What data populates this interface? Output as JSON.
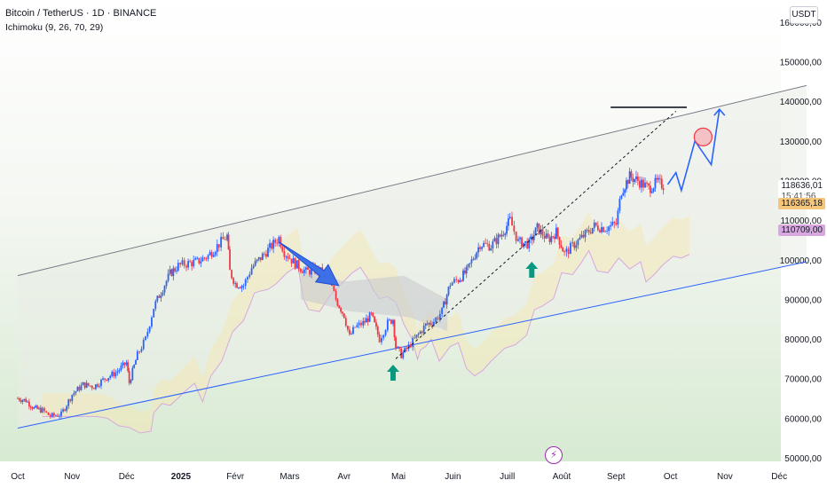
{
  "header": {
    "symbol": "Bitcoin / TetherUS · 1D · BINANCE",
    "indicator": "Ichimoku (9, 26, 70, 29)",
    "currency_button": "USDT"
  },
  "colors": {
    "up": "#2962ff",
    "down": "#f23645",
    "channel_upper": "#787b86",
    "channel_lower": "#2962ff",
    "arrow_blue": "#2962ff",
    "cloud_gray": "#c9cbd1",
    "cloud_yellow": "#f6e7b0",
    "support_arrow": "#089981",
    "tag_orange": "#f5c57a",
    "tag_purple": "#d8a7e0"
  },
  "chart_data": {
    "type": "candlestick",
    "x_ticks": [
      "Oct",
      "Nov",
      "Déc",
      "2025",
      "Févr",
      "Mars",
      "Avr",
      "Mai",
      "Juin",
      "Juill",
      "Août",
      "Sept",
      "Oct",
      "Nov",
      "Déc"
    ],
    "y_ticks": [
      "50000,00",
      "60000,00",
      "70000,00",
      "80000,00",
      "90000,00",
      "100000,00",
      "110000,00",
      "120000,00",
      "130000,00",
      "140000,00",
      "150000,00",
      "160000,00"
    ],
    "ylim": [
      50000,
      162000
    ],
    "price_tags": [
      {
        "value": "118636,01",
        "sub": "15:41:56",
        "style": "last"
      },
      {
        "value": "116365,18",
        "style": "orange"
      },
      {
        "value": "110709,00",
        "style": "purple"
      }
    ],
    "price_path": [
      [
        0,
        65000
      ],
      [
        0.15,
        64500
      ],
      [
        0.3,
        62500
      ],
      [
        0.45,
        62000
      ],
      [
        0.6,
        60500
      ],
      [
        0.8,
        61000
      ],
      [
        1.0,
        66000
      ],
      [
        1.2,
        68500
      ],
      [
        1.4,
        68000
      ],
      [
        1.6,
        70000
      ],
      [
        1.8,
        71500
      ],
      [
        2.0,
        74000
      ],
      [
        2.05,
        69000
      ],
      [
        2.2,
        76000
      ],
      [
        2.35,
        80000
      ],
      [
        2.5,
        88000
      ],
      [
        2.6,
        91000
      ],
      [
        2.8,
        96500
      ],
      [
        2.95,
        98500
      ],
      [
        3.1,
        99000
      ],
      [
        3.3,
        99500
      ],
      [
        3.5,
        101000
      ],
      [
        3.7,
        104000
      ],
      [
        3.85,
        106000
      ],
      [
        3.9,
        97000
      ],
      [
        4.0,
        94000
      ],
      [
        4.15,
        93500
      ],
      [
        4.3,
        98000
      ],
      [
        4.5,
        101000
      ],
      [
        4.7,
        104000
      ],
      [
        4.8,
        105500
      ],
      [
        4.9,
        102000
      ],
      [
        5.1,
        99000
      ],
      [
        5.3,
        97000
      ],
      [
        5.5,
        97500
      ],
      [
        5.7,
        96000
      ],
      [
        5.85,
        90000
      ],
      [
        6.0,
        86000
      ],
      [
        6.1,
        80500
      ],
      [
        6.2,
        83000
      ],
      [
        6.35,
        84000
      ],
      [
        6.5,
        86000
      ],
      [
        6.65,
        80000
      ],
      [
        6.8,
        84000
      ],
      [
        6.9,
        85000
      ],
      [
        6.95,
        78000
      ],
      [
        7.05,
        76000
      ],
      [
        7.15,
        77500
      ],
      [
        7.3,
        80000
      ],
      [
        7.5,
        83500
      ],
      [
        7.65,
        84500
      ],
      [
        7.8,
        87000
      ],
      [
        7.95,
        94000
      ],
      [
        8.1,
        95000
      ],
      [
        8.25,
        97000
      ],
      [
        8.5,
        104000
      ],
      [
        8.7,
        103500
      ],
      [
        8.9,
        106500
      ],
      [
        9.05,
        110000
      ],
      [
        9.2,
        104500
      ],
      [
        9.4,
        104000
      ],
      [
        9.55,
        108000
      ],
      [
        9.75,
        105000
      ],
      [
        9.9,
        107000
      ],
      [
        10.05,
        101500
      ],
      [
        10.2,
        103500
      ],
      [
        10.4,
        106000
      ],
      [
        10.6,
        108500
      ],
      [
        10.8,
        108000
      ],
      [
        11.0,
        109000
      ],
      [
        11.1,
        117500
      ],
      [
        11.25,
        121000
      ],
      [
        11.4,
        120000
      ],
      [
        11.6,
        118000
      ],
      [
        11.75,
        119500
      ],
      [
        11.9,
        118600
      ]
    ],
    "channel": {
      "upper": [
        [
          0,
          96000
        ],
        [
          14.5,
          144000
        ]
      ],
      "lower": [
        [
          0,
          57500
        ],
        [
          14.5,
          99500
        ]
      ]
    },
    "dashed_trend": [
      [
        6.95,
        75000
      ],
      [
        12.1,
        137500
      ]
    ],
    "projection": [
      [
        11.95,
        119000
      ],
      [
        12.1,
        122000
      ],
      [
        12.2,
        117500
      ],
      [
        12.45,
        130000
      ],
      [
        12.75,
        124000
      ],
      [
        12.9,
        138000
      ]
    ],
    "resistance_line": {
      "x": [
        10.9,
        12.3
      ],
      "y": 138500
    },
    "target_circle": {
      "x": 12.6,
      "y": 131000
    },
    "support_arrows": [
      {
        "x": 6.9,
        "y": 71500
      },
      {
        "x": 9.45,
        "y": 97500
      }
    ],
    "down_arrow": {
      "from": [
        4.8,
        104500
      ],
      "to": [
        5.9,
        93500
      ]
    }
  }
}
